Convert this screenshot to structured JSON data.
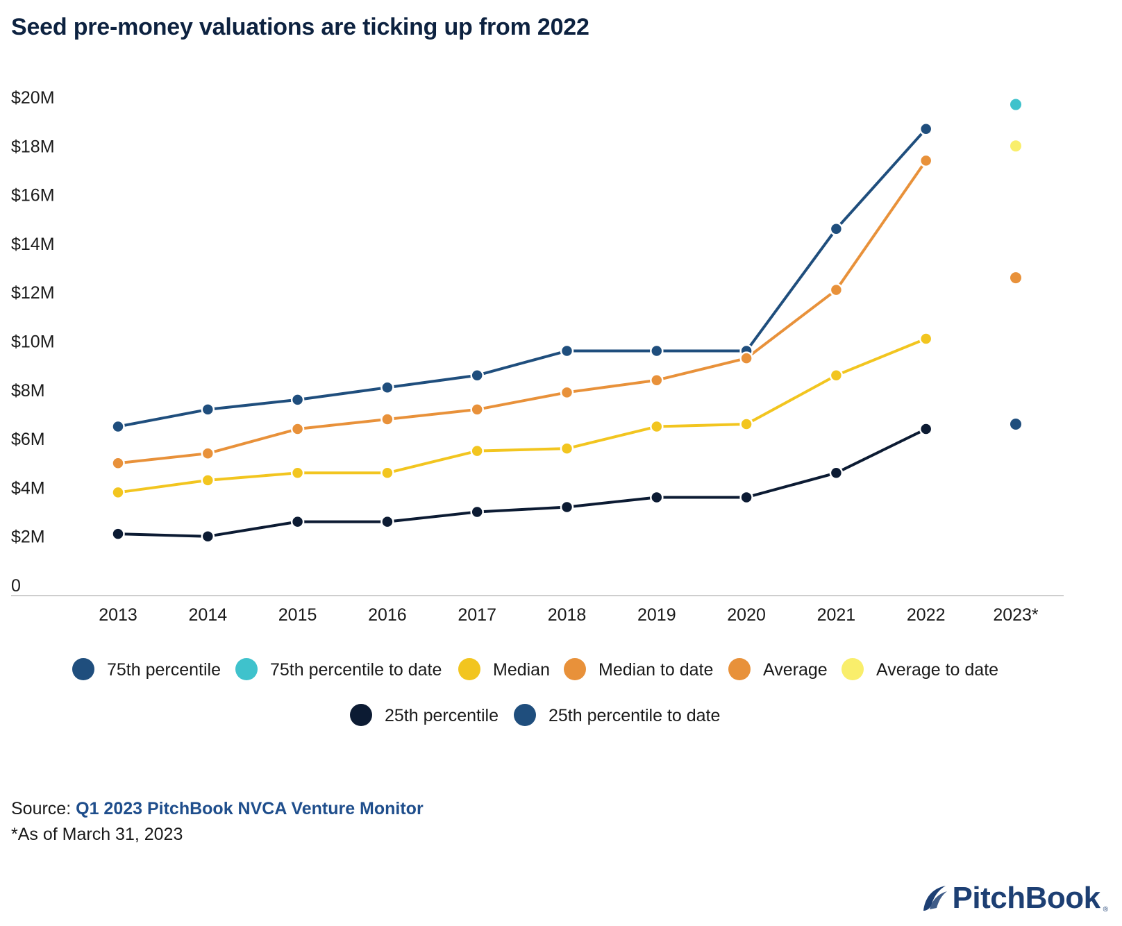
{
  "title": "Seed pre-money valuations are ticking up from 2022",
  "source": {
    "prefix": "Source:",
    "link_text": "Q1 2023 PitchBook NVCA Venture Monitor"
  },
  "footnote": "*As of March 31, 2023",
  "logo": {
    "text": "PitchBook",
    "reg": "®"
  },
  "chart_data": {
    "type": "line",
    "title": "Seed pre-money valuations are ticking up from 2022",
    "categories": [
      "2013",
      "2014",
      "2015",
      "2016",
      "2017",
      "2018",
      "2019",
      "2020",
      "2021",
      "2022",
      "2023*"
    ],
    "y_ticks": [
      "0",
      "$2M",
      "$4M",
      "$6M",
      "$8M",
      "$10M",
      "$12M",
      "$14M",
      "$16M",
      "$18M",
      "$20M"
    ],
    "ylim": [
      0,
      20
    ],
    "y_unit": "$M",
    "grid": false,
    "legend_position": "bottom",
    "series": [
      {
        "name": "75th percentile",
        "color": "#1f4e7d",
        "type": "line",
        "values": [
          6.5,
          7.2,
          7.6,
          8.1,
          8.6,
          9.6,
          9.6,
          9.6,
          14.6,
          18.7,
          null
        ]
      },
      {
        "name": "75th percentile to date",
        "color": "#3fc2cc",
        "type": "point",
        "values": [
          null,
          null,
          null,
          null,
          null,
          null,
          null,
          null,
          null,
          null,
          19.7
        ]
      },
      {
        "name": "Median",
        "color": "#f2c51f",
        "type": "line",
        "values": [
          3.8,
          4.3,
          4.6,
          4.6,
          5.5,
          5.6,
          6.5,
          6.6,
          8.6,
          10.1,
          null
        ]
      },
      {
        "name": "Median to date",
        "color": "#e8913a",
        "type": "point",
        "values": [
          null,
          null,
          null,
          null,
          null,
          null,
          null,
          null,
          null,
          null,
          12.6
        ]
      },
      {
        "name": "Average",
        "color": "#e8913a",
        "type": "line",
        "values": [
          5.0,
          5.4,
          6.4,
          6.8,
          7.2,
          7.9,
          8.4,
          9.3,
          12.1,
          17.4,
          null
        ]
      },
      {
        "name": "Average to date",
        "color": "#f9ee6b",
        "type": "point",
        "values": [
          null,
          null,
          null,
          null,
          null,
          null,
          null,
          null,
          null,
          null,
          18.0
        ]
      },
      {
        "name": "25th percentile",
        "color": "#0c1b33",
        "type": "line",
        "values": [
          2.1,
          2.0,
          2.6,
          2.6,
          3.0,
          3.2,
          3.6,
          3.6,
          4.6,
          6.4,
          null
        ]
      },
      {
        "name": "25th percentile to date",
        "color": "#1f4e7d",
        "type": "point",
        "values": [
          null,
          null,
          null,
          null,
          null,
          null,
          null,
          null,
          null,
          null,
          6.6
        ]
      }
    ]
  }
}
